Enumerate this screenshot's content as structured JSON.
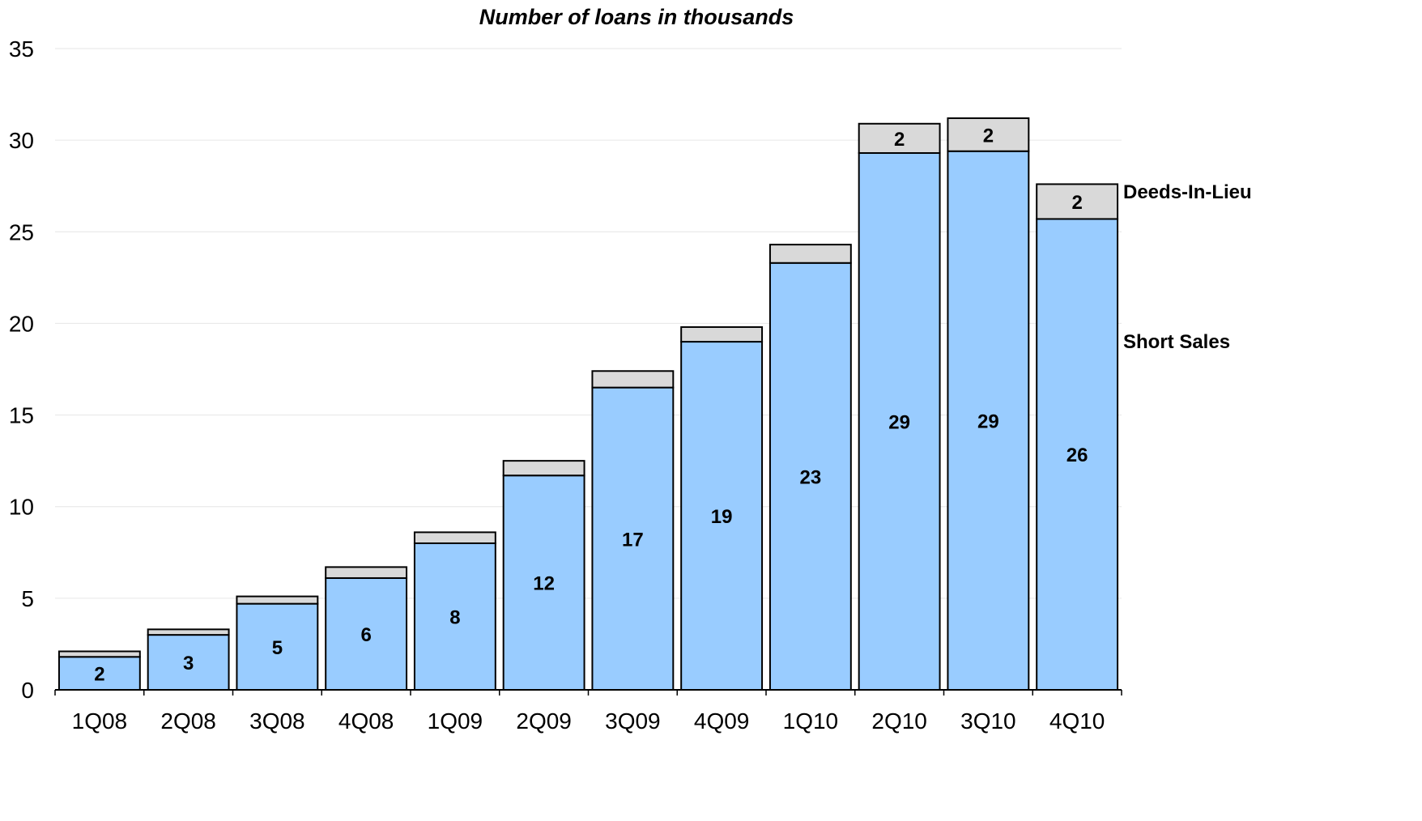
{
  "chart_data": {
    "type": "bar",
    "stacked": true,
    "title": "Number of loans in thousands",
    "xlabel": "",
    "ylabel": "",
    "ylim": [
      0,
      35
    ],
    "yticks": [
      0,
      5,
      10,
      15,
      20,
      25,
      30,
      35
    ],
    "grid": true,
    "legend": "right, inline labels",
    "categories": [
      "1Q08",
      "2Q08",
      "3Q08",
      "4Q08",
      "1Q09",
      "2Q09",
      "3Q09",
      "4Q09",
      "1Q10",
      "2Q10",
      "3Q10",
      "4Q10"
    ],
    "series": [
      {
        "name": "Short Sales",
        "color": "#99ccff",
        "values": [
          1.8,
          3.0,
          4.7,
          6.1,
          8.0,
          11.7,
          16.5,
          19.0,
          23.3,
          29.3,
          29.4,
          25.7
        ],
        "labels": [
          "2",
          "3",
          "5",
          "6",
          "8",
          "12",
          "17",
          "19",
          "23",
          "29",
          "29",
          "26"
        ]
      },
      {
        "name": "Deeds-In-Lieu",
        "color": "#d9d9d9",
        "values": [
          0.3,
          0.3,
          0.4,
          0.6,
          0.6,
          0.8,
          0.9,
          0.8,
          1.0,
          1.6,
          1.8,
          1.9
        ],
        "labels": [
          "",
          "",
          "",
          "",
          "",
          "",
          "",
          "",
          "",
          "2",
          "2",
          "2"
        ]
      }
    ]
  }
}
